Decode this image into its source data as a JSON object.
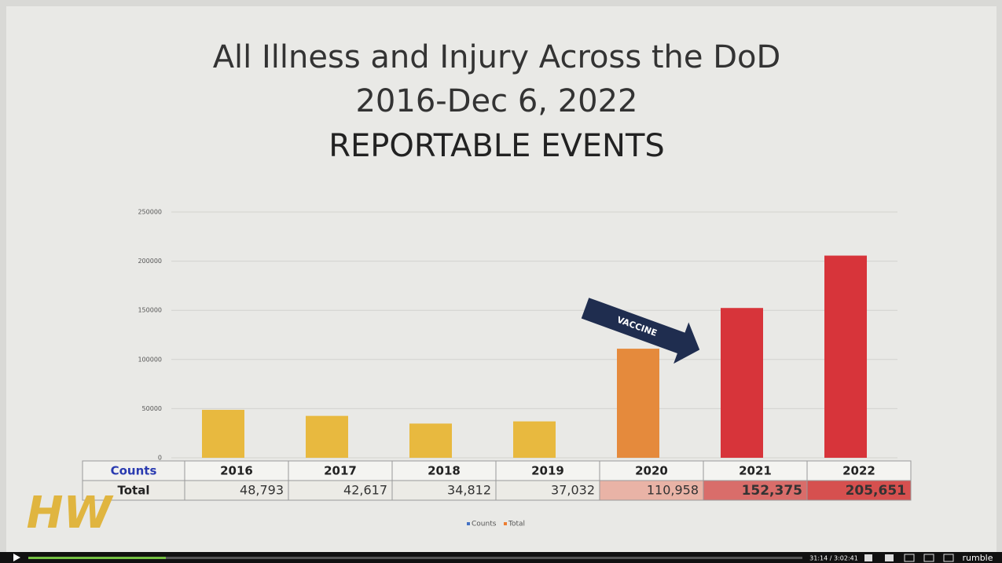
{
  "chart_data": {
    "type": "bar",
    "title": "All Illness and Injury Across the DoD",
    "subtitle": "2016-Dec 6, 2022",
    "heading": "REPORTABLE EVENTS",
    "annotation": "VACCINE",
    "categories": [
      "2016",
      "2017",
      "2018",
      "2019",
      "2020",
      "2021",
      "2022"
    ],
    "series": [
      {
        "name": "Total",
        "values": [
          48793,
          42617,
          34812,
          37032,
          110958,
          152375,
          205651
        ],
        "value_labels": [
          "48,793",
          "42,617",
          "34,812",
          "37,032",
          "110,958",
          "152,375",
          "205,651"
        ],
        "colors": [
          "#e8b93f",
          "#e8b93f",
          "#e8b93f",
          "#e8b93f",
          "#e58a3c",
          "#d7343a",
          "#d7343a"
        ],
        "cell_colors": [
          "#ecebe6",
          "#ecebe6",
          "#ecebe6",
          "#ecebe6",
          "#e9b3a6",
          "#d96d6a",
          "#d6504f"
        ]
      }
    ],
    "table_header": "Counts",
    "row_label": "Total",
    "legend": [
      {
        "name": "Counts",
        "color": "#4472c4"
      },
      {
        "name": "Total",
        "color": "#ed7d31"
      }
    ],
    "ylim": [
      0,
      250000
    ],
    "yticks": [
      0,
      50000,
      100000,
      150000,
      200000,
      250000
    ],
    "grid": true
  },
  "logo": "HW",
  "player": {
    "time": "31:14 / 3:02:41",
    "brand": "rumble"
  }
}
